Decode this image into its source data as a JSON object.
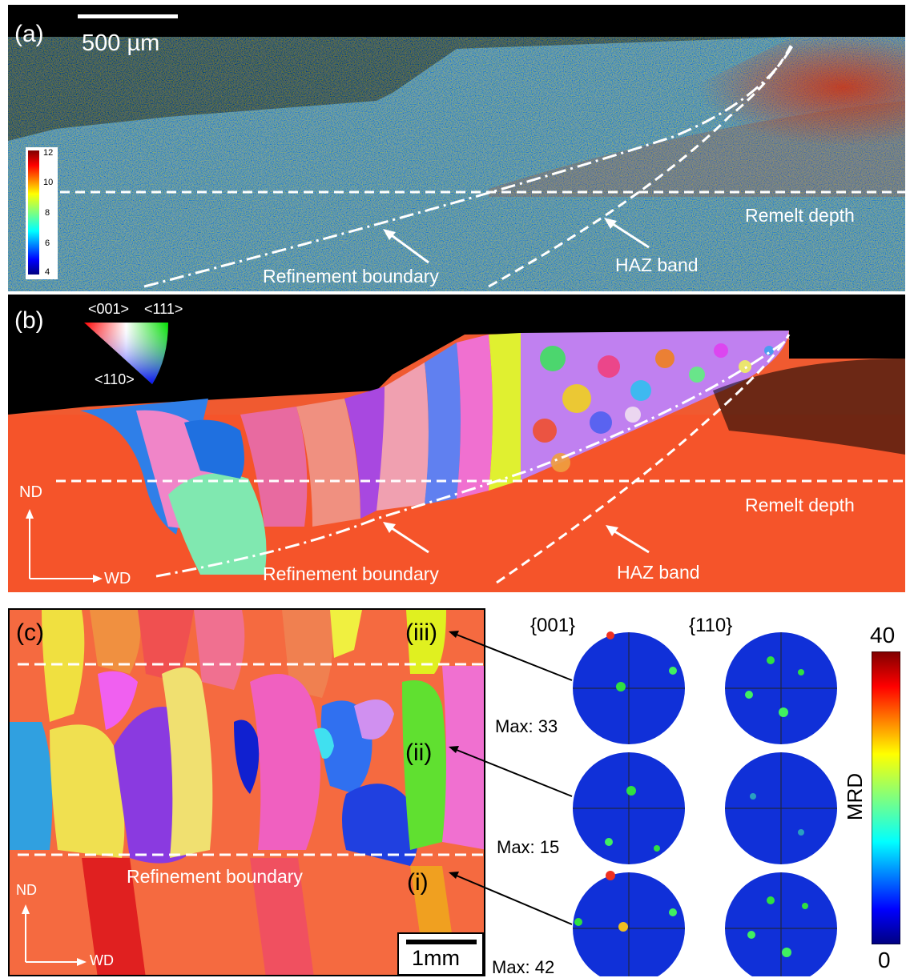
{
  "panel_a": {
    "label": "(a)",
    "scale_bar": "500 µm",
    "colorbar_ticks": [
      "12",
      "10",
      "8",
      "6",
      "4"
    ],
    "annotations": {
      "remelt_depth": "Remelt depth",
      "refinement_boundary": "Refinement boundary",
      "haz_band": "HAZ band"
    }
  },
  "panel_b": {
    "label": "(b)",
    "ipf_key": [
      "<001>",
      "<111>",
      "<110>"
    ],
    "annotations": {
      "remelt_depth": "Remelt depth",
      "refinement_boundary": "Refinement boundary",
      "haz_band": "HAZ band"
    },
    "axes": {
      "nd": "ND",
      "wd": "WD"
    }
  },
  "panel_c": {
    "label": "(c)",
    "regions": [
      "(iii)",
      "(ii)",
      "(i)"
    ],
    "refinement_boundary": "Refinement boundary",
    "axes": {
      "nd": "ND",
      "wd": "WD"
    },
    "scale_bar": "1mm"
  },
  "pole_figures": {
    "headers": [
      "{001}",
      "{110}"
    ],
    "max_labels": [
      "Max: 33",
      "Max: 15",
      "Max: 42"
    ],
    "colorbar": {
      "top": "40",
      "bottom": "0",
      "title": "MRD"
    }
  },
  "colors": {
    "background": "#000000",
    "dashed_line": "#ffffff",
    "pole_blue": "#1030d8"
  }
}
